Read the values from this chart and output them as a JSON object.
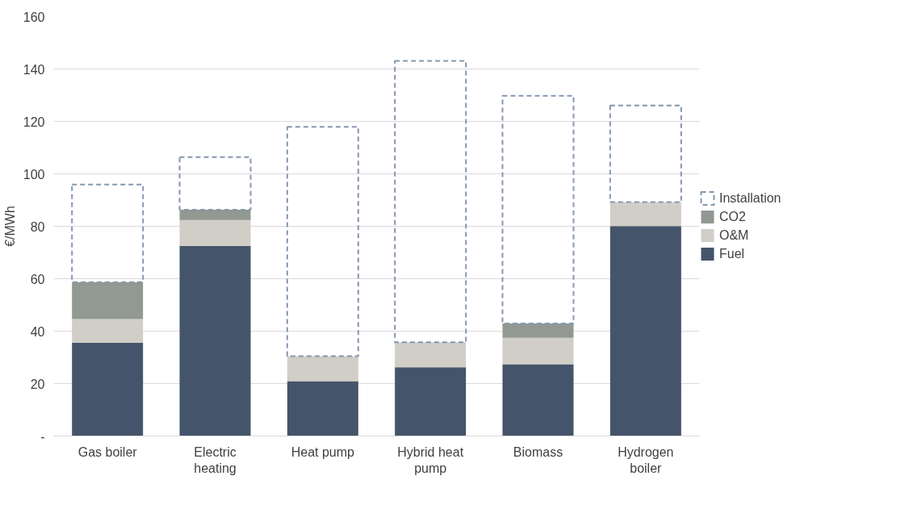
{
  "chart_data": {
    "type": "bar",
    "stacked": true,
    "ylabel": "€/MWh",
    "categories": [
      "Gas boiler",
      "Electric heating",
      "Heat pump",
      "Hybrid heat pump",
      "Biomass",
      "Hydrogen boiler"
    ],
    "series": [
      {
        "name": "Fuel",
        "color": "#44546a",
        "values": [
          35.6,
          72.5,
          20.9,
          26.2,
          27.4,
          80.1
        ]
      },
      {
        "name": "O&M",
        "color": "#d0cec7",
        "values": [
          9.0,
          9.9,
          9.6,
          9.6,
          10.1,
          9.1
        ]
      },
      {
        "name": "CO2",
        "color": "#929892",
        "values": [
          14.1,
          3.9,
          null,
          null,
          5.4,
          null
        ]
      },
      {
        "name": "Installation",
        "color": "#8497b0",
        "line_style": "dashed",
        "values": [
          37.2,
          20.1,
          87.4,
          107.3,
          86.9,
          36.9
        ]
      }
    ],
    "ylim": [
      0,
      160
    ],
    "yticks": [
      {
        "value": 0,
        "label": "-"
      },
      20,
      40,
      60,
      80,
      100,
      120,
      140,
      160
    ],
    "grid": "y",
    "legend": "right"
  }
}
